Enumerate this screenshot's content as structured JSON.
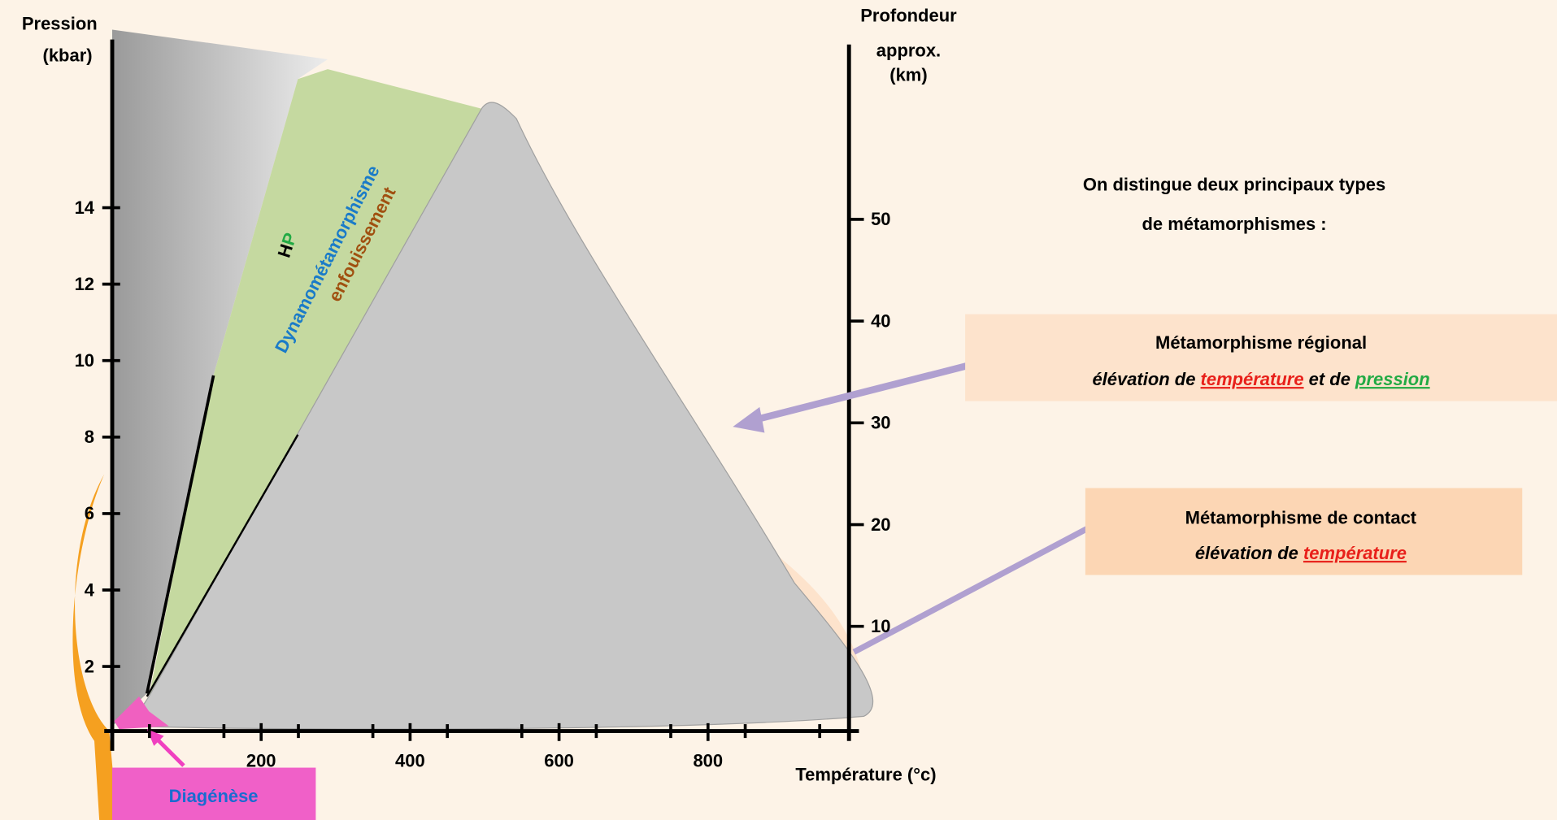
{
  "axes": {
    "pressure_label": [
      "Pression",
      "(kbar)"
    ],
    "temperature_label": "Température (°c)",
    "depth_label": [
      "Profondeur",
      "approx.",
      "(km)"
    ],
    "pressure_ticks": [
      2,
      4,
      6,
      8,
      10,
      12,
      14
    ],
    "temperature_ticks": [
      200,
      400,
      600,
      800
    ],
    "depth_ticks": [
      10,
      20,
      30,
      40,
      50
    ]
  },
  "zones": {
    "hp": [
      "H",
      "P"
    ],
    "dynamo": "Dynamométamorphisme",
    "enfouissement": "enfouissement",
    "diagenese": "Diagénèse"
  },
  "intro": [
    "On distingue deux principaux types",
    "de métamorphismes :"
  ],
  "regional": {
    "title": "Métamorphisme régional",
    "desc": [
      "élévation de ",
      "température",
      " et de ",
      "pression"
    ]
  },
  "contact": {
    "title": "Métamorphisme de contact",
    "desc": [
      "élévation de ",
      "température"
    ]
  }
}
